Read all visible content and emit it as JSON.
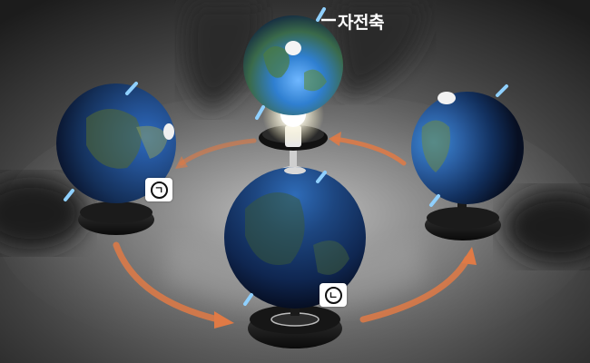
{
  "axis_label": "자전축",
  "position_labels": {
    "a": "ㄱ",
    "b": "ㄴ"
  },
  "colors": {
    "background": "#2b2b2b",
    "orbit_arrow": "#e07a45",
    "axis_marker": "#8fd0ff",
    "label_text": "#ffffff"
  }
}
